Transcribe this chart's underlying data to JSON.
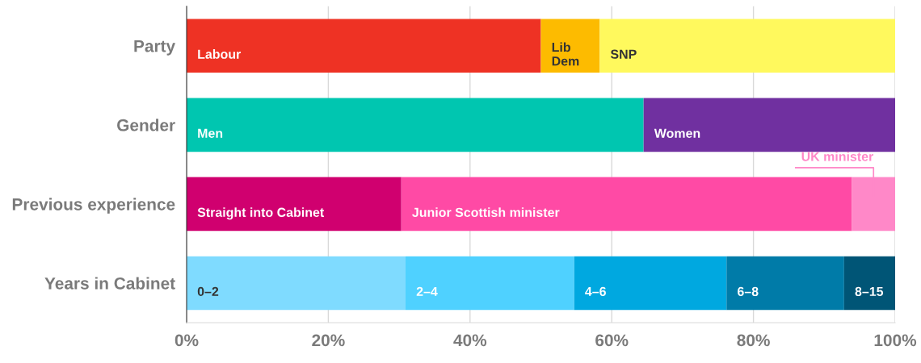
{
  "chart_data": {
    "type": "bar",
    "orientation": "horizontal",
    "stacked": true,
    "categories": [
      "Party",
      "Gender",
      "Previous experience",
      "Years in Cabinet"
    ],
    "series": [
      {
        "name": "Labour",
        "color": "#ee3224",
        "values": [
          50,
          null,
          null,
          null
        ]
      },
      {
        "name": "Lib Dem",
        "color": "#fdbb00",
        "values": [
          8.3,
          null,
          null,
          null
        ]
      },
      {
        "name": "SNP",
        "color": "#fff95d",
        "values": [
          41.7,
          null,
          null,
          null
        ]
      },
      {
        "name": "Men",
        "color": "#00c6b0",
        "values": [
          null,
          64.5,
          null,
          null
        ]
      },
      {
        "name": "Women",
        "color": "#7030a0",
        "values": [
          null,
          35.5,
          null,
          null
        ]
      },
      {
        "name": "Straight into Cabinet",
        "color": "#d0006f",
        "values": [
          null,
          null,
          30.3,
          null
        ]
      },
      {
        "name": "Junior Scottish minister",
        "color": "#ff4aa5",
        "values": [
          null,
          null,
          63.6,
          null
        ]
      },
      {
        "name": "UK minister",
        "color": "#ff88c8",
        "values": [
          null,
          null,
          6.1,
          null
        ]
      },
      {
        "name": "0–2",
        "color": "#7fdbff",
        "values": [
          null,
          null,
          null,
          30.9
        ]
      },
      {
        "name": "2–4",
        "color": "#4fd1ff",
        "values": [
          null,
          null,
          null,
          23.8
        ]
      },
      {
        "name": "4–6",
        "color": "#00a8e0",
        "values": [
          null,
          null,
          null,
          21.5
        ]
      },
      {
        "name": "6–8",
        "color": "#007ba8",
        "values": [
          null,
          null,
          null,
          16.6
        ]
      },
      {
        "name": "8–15",
        "color": "#005576",
        "values": [
          null,
          null,
          null,
          7.2
        ]
      }
    ],
    "xlim": [
      0,
      100
    ],
    "xticks": [
      {
        "value": 0,
        "label": "0%"
      },
      {
        "value": 20,
        "label": "20%"
      },
      {
        "value": 40,
        "label": "40%"
      },
      {
        "value": 60,
        "label": "60%"
      },
      {
        "value": 80,
        "label": "80%"
      },
      {
        "value": 100,
        "label": "100%"
      }
    ],
    "grid": "x",
    "legend": false
  }
}
